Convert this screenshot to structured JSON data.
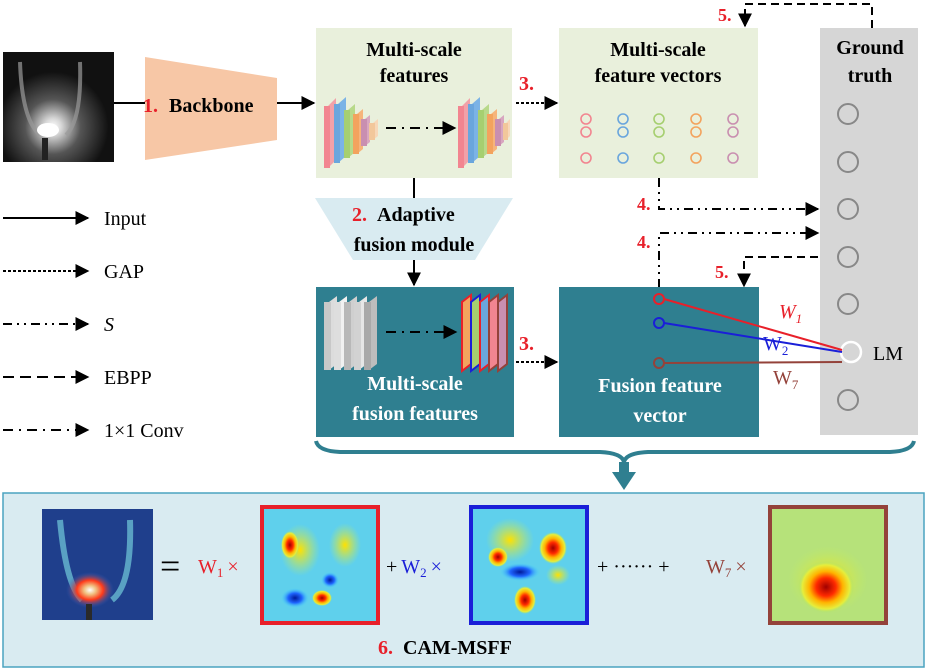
{
  "nodes": {
    "backbone": {
      "step": "1.",
      "label": "Backbone"
    },
    "msf": {
      "line1": "Multi-scale",
      "line2": "features"
    },
    "msfv": {
      "line1": "Multi-scale",
      "line2": "feature vectors"
    },
    "gt": {
      "line1": "Ground",
      "line2": "truth"
    },
    "afm": {
      "step": "2.",
      "line1": "Adaptive",
      "line2": "fusion module"
    },
    "msff": {
      "line1": "Multi-scale",
      "line2": "fusion features"
    },
    "ffv": {
      "line1": "Fusion feature",
      "line2": "vector"
    }
  },
  "steps": {
    "gap_top": "3.",
    "gap_bottom": "3.",
    "s_top": "4.",
    "s_bottom": "4.",
    "ebpp_top": "5.",
    "ebpp_mid": "5."
  },
  "weights": {
    "w1": "W",
    "w1_sub": "1",
    "w2": "W",
    "w2_sub": "2",
    "w7": "W",
    "w7_sub": "7"
  },
  "lm_label": "LM",
  "legend": [
    {
      "label": "Input"
    },
    {
      "label": "GAP"
    },
    {
      "label": "S"
    },
    {
      "label": "EBPP"
    },
    {
      "label": "1×1 Conv"
    }
  ],
  "equation": {
    "eq": "=",
    "w1": "W",
    "w1_sub": "1",
    "times1": "×",
    "plus1": "+",
    "w2": "W",
    "w2_sub": "2",
    "times2": "×",
    "plus2": "+ ······ +",
    "w7": "W",
    "w7_sub": "7",
    "times3": "×"
  },
  "cam_title": {
    "step": "6.",
    "label": "CAM-MSFF"
  },
  "colors": {
    "red": "#e8202a",
    "blue": "#1a1fd8",
    "brown": "#94423a",
    "teal": "#2f7f90",
    "light_green": "#e9f0dc",
    "light_blue": "#d9ebf1",
    "gray": "#d6d6d6",
    "peach": "#f7c7a6"
  }
}
